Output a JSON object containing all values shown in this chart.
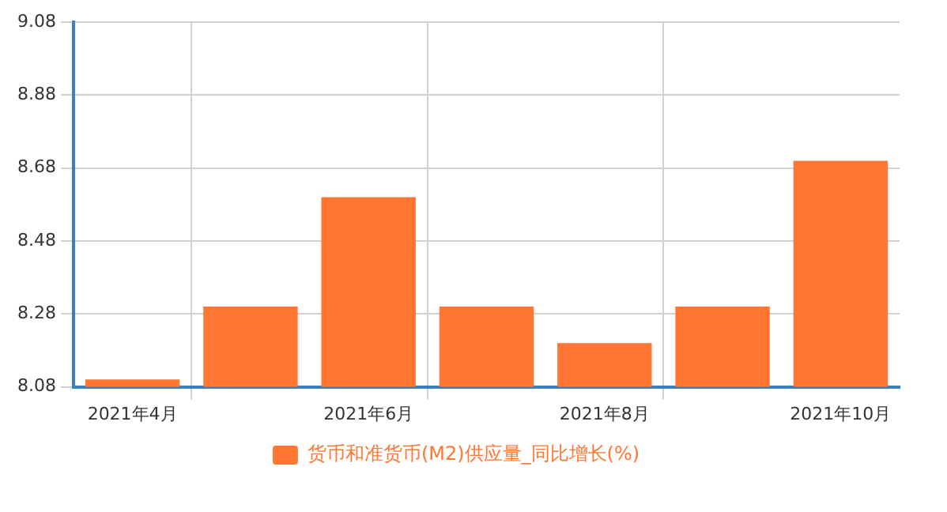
{
  "chart_data": {
    "type": "bar",
    "categories": [
      "2021年4月",
      null,
      "2021年6月",
      null,
      "2021年8月",
      null,
      "2021年10月"
    ],
    "series": [
      {
        "name": "货币和准货币(M2)供应量_同比增长(%)",
        "color": "#ff7733",
        "values": [
          8.1,
          8.3,
          8.6,
          8.3,
          8.2,
          8.3,
          8.7
        ]
      }
    ],
    "ylim": [
      8.08,
      9.08
    ],
    "yticks": [
      8.08,
      8.28,
      8.48,
      8.68,
      8.88,
      9.08
    ],
    "grid": true,
    "legend": "bottom"
  }
}
